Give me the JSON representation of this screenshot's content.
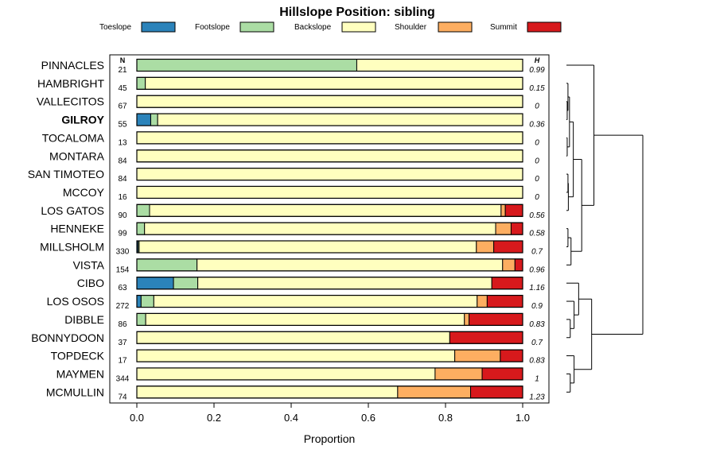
{
  "chart_data": {
    "type": "bar",
    "orientation": "horizontal",
    "stacked": true,
    "title": "Hillslope Position: sibling",
    "xlabel": "Proportion",
    "ylabel": "",
    "xlim": [
      0,
      1
    ],
    "xticks": [
      "0.0",
      "0.2",
      "0.4",
      "0.6",
      "0.8",
      "1.0"
    ],
    "n_header": "N",
    "h_header": "H",
    "highlight": "GILROY",
    "legend_position": "top",
    "series": [
      {
        "name": "Toeslope",
        "color": "#2B83BA"
      },
      {
        "name": "Footslope",
        "color": "#ABDDA4"
      },
      {
        "name": "Backslope",
        "color": "#FFFFBF"
      },
      {
        "name": "Shoulder",
        "color": "#FDAE61"
      },
      {
        "name": "Summit",
        "color": "#D7191C"
      }
    ],
    "rows": [
      {
        "label": "PINNACLES",
        "n": "21",
        "h": "0.99",
        "values": [
          0,
          0.57,
          0.43,
          0,
          0
        ]
      },
      {
        "label": "HAMBRIGHT",
        "n": "45",
        "h": "0.15",
        "values": [
          0,
          0.022,
          0.978,
          0,
          0
        ]
      },
      {
        "label": "VALLECITOS",
        "n": "67",
        "h": "0",
        "values": [
          0,
          0,
          1.0,
          0,
          0
        ]
      },
      {
        "label": "GILROY",
        "n": "55",
        "h": "0.36",
        "values": [
          0.036,
          0.018,
          0.946,
          0,
          0
        ]
      },
      {
        "label": "TOCALOMA",
        "n": "13",
        "h": "0",
        "values": [
          0,
          0,
          1.0,
          0,
          0
        ]
      },
      {
        "label": "MONTARA",
        "n": "84",
        "h": "0",
        "values": [
          0,
          0,
          1.0,
          0,
          0
        ]
      },
      {
        "label": "SAN TIMOTEO",
        "n": "84",
        "h": "0",
        "values": [
          0,
          0,
          1.0,
          0,
          0
        ]
      },
      {
        "label": "MCCOY",
        "n": "16",
        "h": "0",
        "values": [
          0,
          0,
          1.0,
          0,
          0
        ]
      },
      {
        "label": "LOS GATOS",
        "n": "90",
        "h": "0.56",
        "values": [
          0,
          0.033,
          0.911,
          0.011,
          0.045
        ]
      },
      {
        "label": "HENNEKE",
        "n": "99",
        "h": "0.58",
        "values": [
          0,
          0.02,
          0.91,
          0.04,
          0.03
        ]
      },
      {
        "label": "MILLSHOLM",
        "n": "330",
        "h": "0.7",
        "values": [
          0.003,
          0.003,
          0.874,
          0.045,
          0.075
        ]
      },
      {
        "label": "VISTA",
        "n": "154",
        "h": "0.96",
        "values": [
          0,
          0.156,
          0.792,
          0.032,
          0.02
        ]
      },
      {
        "label": "CIBO",
        "n": "63",
        "h": "1.16",
        "values": [
          0.095,
          0.063,
          0.762,
          0,
          0.08
        ]
      },
      {
        "label": "LOS OSOS",
        "n": "272",
        "h": "0.9",
        "values": [
          0.011,
          0.033,
          0.838,
          0.026,
          0.092
        ]
      },
      {
        "label": "DIBBLE",
        "n": "86",
        "h": "0.83",
        "values": [
          0,
          0.023,
          0.826,
          0.012,
          0.139
        ]
      },
      {
        "label": "BONNYDOON",
        "n": "37",
        "h": "0.7",
        "values": [
          0,
          0,
          0.811,
          0,
          0.189
        ]
      },
      {
        "label": "TOPDECK",
        "n": "17",
        "h": "0.83",
        "values": [
          0,
          0,
          0.824,
          0.118,
          0.058
        ]
      },
      {
        "label": "MAYMEN",
        "n": "344",
        "h": "1",
        "values": [
          0,
          0,
          0.773,
          0.122,
          0.105
        ]
      },
      {
        "label": "MCMULLIN",
        "n": "74",
        "h": "1.23",
        "values": [
          0,
          0,
          0.676,
          0.189,
          0.135
        ]
      }
    ],
    "dendrogram": {
      "leaf_order": [
        "PINNACLES",
        "HAMBRIGHT",
        "VALLECITOS",
        "GILROY",
        "TOCALOMA",
        "MONTARA",
        "SAN TIMOTEO",
        "MCCOY",
        "LOS GATOS",
        "HENNEKE",
        "MILLSHOLM",
        "VISTA",
        "CIBO",
        "LOS OSOS",
        "DIBBLE",
        "BONNYDOON",
        "TOPDECK",
        "MAYMEN",
        "MCMULLIN"
      ],
      "merges": [
        {
          "a": "L2",
          "b": "L3",
          "height": 0.01,
          "id": "a1"
        },
        {
          "a": "L1",
          "b": "a1",
          "height": 0.02,
          "id": "a2"
        },
        {
          "a": "L4",
          "b": "L5",
          "height": 0.01,
          "id": "a3"
        },
        {
          "a": "a2",
          "b": "a3",
          "height": 0.04,
          "id": "a4"
        },
        {
          "a": "L6",
          "b": "L7",
          "height": 0.02,
          "id": "a5"
        },
        {
          "a": "a5",
          "b": "L8",
          "height": 0.025,
          "id": "a6"
        },
        {
          "a": "a4",
          "b": "a6",
          "height": 0.09,
          "id": "a7"
        },
        {
          "a": "L9",
          "b": "L10",
          "height": 0.02,
          "id": "a8"
        },
        {
          "a": "a8",
          "b": "L11",
          "height": 0.06,
          "id": "a9"
        },
        {
          "a": "a7",
          "b": "a9",
          "height": 0.2,
          "id": "a10"
        },
        {
          "a": "L0",
          "b": "a10",
          "height": 0.36,
          "id": "a11"
        },
        {
          "a": "L14",
          "b": "L15",
          "height": 0.05,
          "id": "b1"
        },
        {
          "a": "L13",
          "b": "b1",
          "height": 0.1,
          "id": "b2"
        },
        {
          "a": "L12",
          "b": "b2",
          "height": 0.16,
          "id": "b3"
        },
        {
          "a": "L17",
          "b": "L18",
          "height": 0.05,
          "id": "b4"
        },
        {
          "a": "L16",
          "b": "b4",
          "height": 0.1,
          "id": "b5"
        },
        {
          "a": "b3",
          "b": "b5",
          "height": 0.33,
          "id": "b6"
        },
        {
          "a": "a11",
          "b": "b6",
          "height": 1.0,
          "id": "root"
        }
      ]
    }
  }
}
